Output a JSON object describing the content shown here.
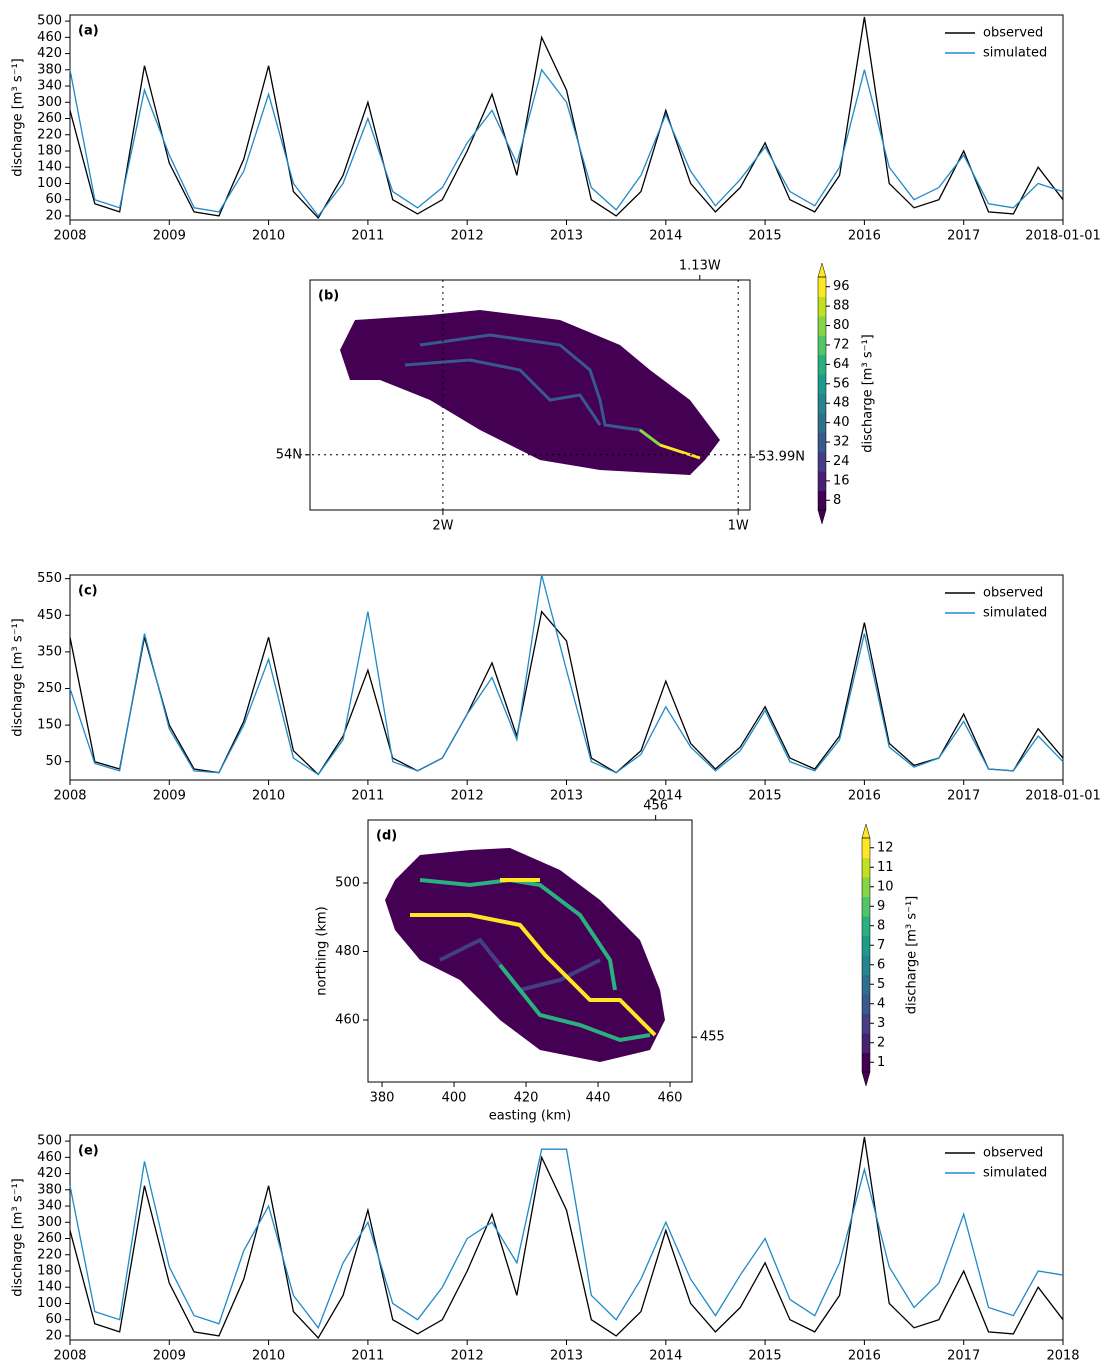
{
  "chart_data": [
    {
      "type": "line",
      "title": "(a)",
      "y_label": "discharge [m³ s⁻¹]",
      "x": [
        2008,
        2008.25,
        2008.5,
        2008.75,
        2009,
        2009.25,
        2009.5,
        2009.75,
        2010,
        2010.25,
        2010.5,
        2010.75,
        2011,
        2011.25,
        2011.5,
        2011.75,
        2012,
        2012.25,
        2012.5,
        2012.75,
        2013,
        2013.25,
        2013.5,
        2013.75,
        2014,
        2014.25,
        2014.5,
        2014.75,
        2015,
        2015.25,
        2015.5,
        2015.75,
        2016,
        2016.25,
        2016.5,
        2016.75,
        2017,
        2017.25,
        2017.5,
        2017.75,
        2018
      ],
      "xlim": [
        2008,
        2018
      ],
      "xticks": [
        2008,
        2009,
        2010,
        2011,
        2012,
        2013,
        2014,
        2015,
        2016,
        2017,
        {
          "value": 2018,
          "label": "2018-01-01"
        }
      ],
      "ylim": [
        10,
        515
      ],
      "yticks": [
        20,
        60,
        100,
        140,
        180,
        220,
        260,
        300,
        340,
        380,
        420,
        460,
        500
      ],
      "legend": "upper right",
      "series": [
        {
          "name": "observed",
          "color": "#000000",
          "values": [
            280,
            50,
            30,
            390,
            150,
            30,
            20,
            160,
            390,
            80,
            15,
            120,
            300,
            60,
            25,
            60,
            180,
            320,
            120,
            460,
            330,
            60,
            20,
            80,
            280,
            100,
            30,
            90,
            200,
            60,
            30,
            120,
            510,
            100,
            40,
            60,
            180,
            30,
            25,
            140,
            60
          ]
        },
        {
          "name": "simulated",
          "color": "#1f8ac8",
          "values": [
            380,
            60,
            40,
            330,
            170,
            40,
            30,
            130,
            320,
            100,
            20,
            100,
            260,
            80,
            40,
            90,
            200,
            280,
            150,
            380,
            300,
            90,
            35,
            120,
            270,
            130,
            45,
            110,
            190,
            80,
            45,
            140,
            380,
            140,
            60,
            90,
            170,
            50,
            40,
            100,
            80
          ]
        }
      ]
    },
    {
      "type": "map",
      "title": "(b)",
      "xlim": [
        -2.45,
        -0.96
      ],
      "ylim": [
        53.76,
        54.76
      ],
      "xticks": [
        {
          "value": -2,
          "label": "2W"
        },
        {
          "value": -1,
          "label": "1W"
        }
      ],
      "yticks": [
        {
          "value": 54,
          "label": "54N"
        }
      ],
      "top_ticks": [
        {
          "value": -1.13,
          "label": "1.13W"
        }
      ],
      "right_ticks": [
        {
          "value": 53.99,
          "label": "53.99N"
        }
      ],
      "grid": true,
      "colorbar": {
        "label": "discharge [m³ s⁻¹]",
        "clim": [
          4,
          100
        ],
        "ticks": [
          8,
          16,
          24,
          32,
          40,
          48,
          56,
          64,
          72,
          80,
          88,
          96
        ],
        "colors": [
          "#440154",
          "#482173",
          "#433e85",
          "#38598c",
          "#2d708e",
          "#25858e",
          "#1e9b8a",
          "#2ab07f",
          "#52c569",
          "#86d549",
          "#c2df23",
          "#fde725"
        ]
      }
    },
    {
      "type": "line",
      "title": "(c)",
      "y_label": "discharge [m³ s⁻¹]",
      "x": [
        2008,
        2008.25,
        2008.5,
        2008.75,
        2009,
        2009.25,
        2009.5,
        2009.75,
        2010,
        2010.25,
        2010.5,
        2010.75,
        2011,
        2011.25,
        2011.5,
        2011.75,
        2012,
        2012.25,
        2012.5,
        2012.75,
        2013,
        2013.25,
        2013.5,
        2013.75,
        2014,
        2014.25,
        2014.5,
        2014.75,
        2015,
        2015.25,
        2015.5,
        2015.75,
        2016,
        2016.25,
        2016.5,
        2016.75,
        2017,
        2017.25,
        2017.5,
        2017.75,
        2018
      ],
      "xlim": [
        2008,
        2018
      ],
      "xticks": [
        2008,
        2009,
        2010,
        2011,
        2012,
        2013,
        2014,
        2015,
        2016,
        2017,
        {
          "value": 2018,
          "label": "2018-01-01"
        }
      ],
      "ylim": [
        0,
        560
      ],
      "yticks": [
        50,
        150,
        250,
        350,
        450,
        550
      ],
      "legend": "upper right",
      "series": [
        {
          "name": "observed",
          "color": "#000000",
          "values": [
            390,
            50,
            30,
            390,
            150,
            30,
            20,
            160,
            390,
            80,
            15,
            120,
            300,
            60,
            25,
            60,
            180,
            320,
            120,
            460,
            380,
            60,
            20,
            80,
            270,
            100,
            30,
            90,
            200,
            60,
            30,
            120,
            430,
            100,
            40,
            60,
            180,
            30,
            25,
            140,
            60
          ]
        },
        {
          "name": "simulated",
          "color": "#1f8ac8",
          "values": [
            250,
            45,
            25,
            400,
            140,
            25,
            20,
            150,
            330,
            60,
            15,
            110,
            460,
            50,
            25,
            60,
            180,
            280,
            110,
            560,
            300,
            50,
            20,
            70,
            200,
            90,
            25,
            80,
            190,
            50,
            25,
            110,
            400,
            90,
            35,
            60,
            160,
            30,
            25,
            120,
            50
          ]
        }
      ]
    },
    {
      "type": "map",
      "title": "(d)",
      "x_label": "easting (km)",
      "y_label": "northing (km)",
      "xlim": [
        376.1,
        466.1
      ],
      "ylim": [
        441.9,
        518.4
      ],
      "xticks": [
        380,
        400,
        420,
        440,
        460
      ],
      "yticks": [
        460,
        480,
        500
      ],
      "top_ticks": [
        456
      ],
      "right_ticks": [
        455
      ],
      "grid": false,
      "colorbar": {
        "label": "discharge [m³ s⁻¹]",
        "clim": [
          0.5,
          12.5
        ],
        "ticks": [
          1,
          2,
          3,
          4,
          5,
          6,
          7,
          8,
          9,
          10,
          11,
          12
        ],
        "colors": [
          "#440154",
          "#482173",
          "#433e85",
          "#38598c",
          "#2d708e",
          "#25858e",
          "#1e9b8a",
          "#2ab07f",
          "#52c569",
          "#86d549",
          "#c2df23",
          "#fde725"
        ]
      }
    },
    {
      "type": "line",
      "title": "(e)",
      "y_label": "discharge [m³ s⁻¹]",
      "x": [
        2008,
        2008.25,
        2008.5,
        2008.75,
        2009,
        2009.25,
        2009.5,
        2009.75,
        2010,
        2010.25,
        2010.5,
        2010.75,
        2011,
        2011.25,
        2011.5,
        2011.75,
        2012,
        2012.25,
        2012.5,
        2012.75,
        2013,
        2013.25,
        2013.5,
        2013.75,
        2014,
        2014.25,
        2014.5,
        2014.75,
        2015,
        2015.25,
        2015.5,
        2015.75,
        2016,
        2016.25,
        2016.5,
        2016.75,
        2017,
        2017.25,
        2017.5,
        2017.75,
        2018
      ],
      "xlim": [
        2008,
        2018
      ],
      "xticks": [
        2008,
        2009,
        2010,
        2011,
        2012,
        2013,
        2014,
        2015,
        2016,
        2017,
        2018
      ],
      "ylim": [
        10,
        515
      ],
      "yticks": [
        20,
        60,
        100,
        140,
        180,
        220,
        260,
        300,
        340,
        380,
        420,
        460,
        500
      ],
      "legend": "upper right",
      "series": [
        {
          "name": "observed",
          "color": "#000000",
          "values": [
            280,
            50,
            30,
            390,
            150,
            30,
            20,
            160,
            390,
            80,
            15,
            120,
            330,
            60,
            25,
            60,
            180,
            320,
            120,
            460,
            330,
            60,
            20,
            80,
            280,
            100,
            30,
            90,
            200,
            60,
            30,
            120,
            510,
            100,
            40,
            60,
            180,
            30,
            25,
            140,
            60
          ]
        },
        {
          "name": "simulated",
          "color": "#1f8ac8",
          "values": [
            390,
            80,
            60,
            450,
            190,
            70,
            50,
            230,
            340,
            120,
            40,
            200,
            300,
            100,
            60,
            140,
            260,
            300,
            200,
            480,
            480,
            120,
            60,
            160,
            300,
            160,
            70,
            170,
            260,
            110,
            70,
            200,
            430,
            190,
            90,
            150,
            320,
            90,
            70,
            180,
            170
          ]
        }
      ]
    }
  ]
}
